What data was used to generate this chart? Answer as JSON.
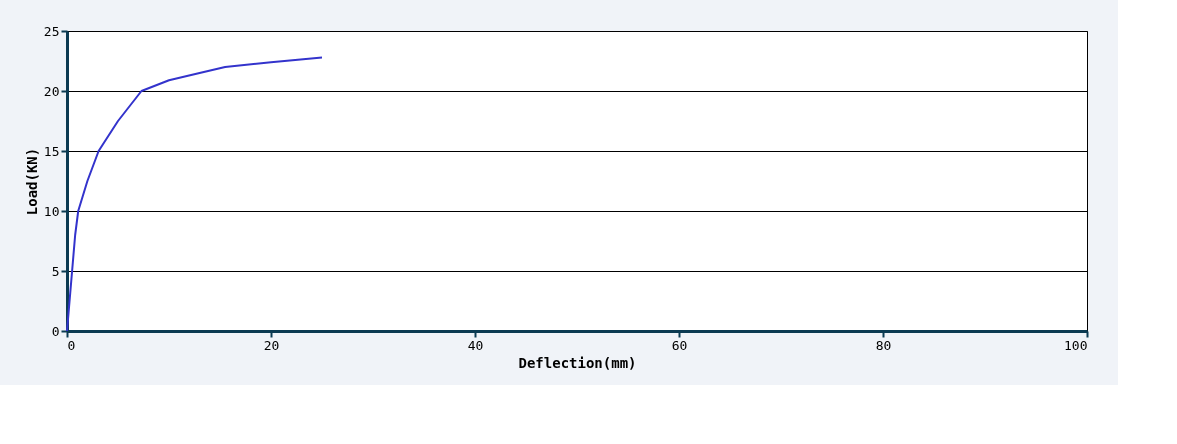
{
  "chart_data": {
    "type": "line",
    "xlabel": "Deflection(mm)",
    "ylabel": "Load(KN)",
    "x": [
      0,
      0.2,
      0.5,
      0.8,
      1.1,
      2,
      3.1,
      5,
      7.3,
      10,
      13,
      15.5,
      20,
      25
    ],
    "series": [
      {
        "color": "#3333cc",
        "values": [
          0,
          2,
          5,
          8,
          10,
          12.5,
          15,
          17.5,
          20,
          20.9,
          21.5,
          22,
          22.4,
          22.8
        ]
      }
    ],
    "xlim": [
      0,
      100
    ],
    "xticks": [
      0,
      20,
      40,
      60,
      80,
      100
    ],
    "ylim": [
      0,
      25
    ],
    "yticks": [
      0,
      5,
      10,
      15,
      20,
      25
    ],
    "grid": "y",
    "marker": "none",
    "line_style": "solid"
  }
}
